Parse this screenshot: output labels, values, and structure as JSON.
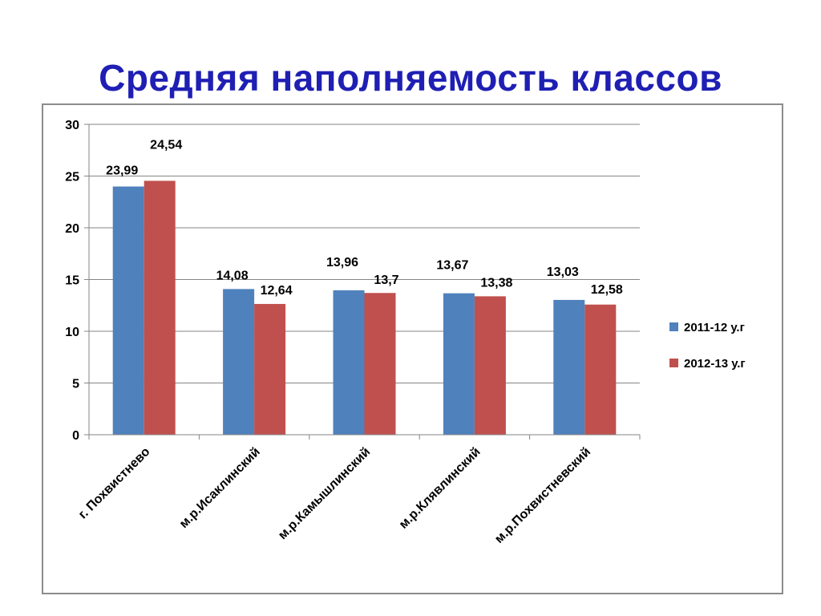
{
  "title": "Средняя наполняемость классов",
  "chart_data": {
    "type": "bar",
    "categories": [
      "г. Похвистнево",
      "м.р.Исаклинский",
      "м.р.Камышлинский",
      "м.р.Клявлинский",
      "м.р.Похвистневский"
    ],
    "series": [
      {
        "name": "2011-12 у.г",
        "color": "#4f81bd",
        "values": [
          23.99,
          14.08,
          13.96,
          13.67,
          13.03
        ],
        "labels": [
          "23,99",
          "14,08",
          "13,96",
          "13,67",
          "13,03"
        ]
      },
      {
        "name": "2012-13 у.г",
        "color": "#c0504d",
        "values": [
          24.54,
          12.64,
          13.7,
          13.38,
          12.58
        ],
        "labels": [
          "24,54",
          "12,64",
          "13,7",
          "13,38",
          "12,58"
        ]
      }
    ],
    "ylim": [
      0,
      30
    ],
    "yticks": [
      0,
      5,
      10,
      15,
      20,
      25,
      30
    ],
    "grid": true,
    "legend": "right",
    "xlabel": "",
    "ylabel": ""
  }
}
